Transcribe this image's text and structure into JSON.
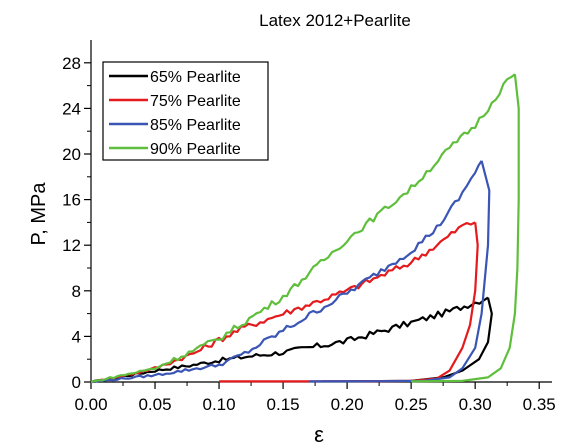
{
  "chart_data": {
    "type": "line",
    "title": "Latex 2012+Pearlite",
    "xlabel": "ε",
    "ylabel": "P, MPa",
    "xlim": [
      0.0,
      0.36
    ],
    "ylim": [
      0,
      30
    ],
    "xticks": [
      "0.00",
      "0.05",
      "0.10",
      "0.15",
      "0.20",
      "0.25",
      "0.30",
      "0.35"
    ],
    "yticks": [
      "0",
      "4",
      "8",
      "12",
      "16",
      "20",
      "24",
      "28"
    ],
    "grid": false,
    "legend_position": "top-left",
    "series": [
      {
        "name": "65% Pearlite",
        "color": "#000000",
        "loading": [
          [
            0.0,
            0
          ],
          [
            0.02,
            0.4
          ],
          [
            0.05,
            1.0
          ],
          [
            0.08,
            1.5
          ],
          [
            0.1,
            1.9
          ],
          [
            0.12,
            2.2
          ],
          [
            0.15,
            2.6
          ],
          [
            0.2,
            3.6
          ],
          [
            0.25,
            5.2
          ],
          [
            0.28,
            6.2
          ],
          [
            0.3,
            7.0
          ],
          [
            0.31,
            7.4
          ]
        ],
        "unloading": [
          [
            0.31,
            7.4
          ],
          [
            0.313,
            6.0
          ],
          [
            0.31,
            3.5
          ],
          [
            0.303,
            2.0
          ],
          [
            0.29,
            1.0
          ],
          [
            0.275,
            0.4
          ],
          [
            0.25,
            0.1
          ],
          [
            0.2,
            0.05
          ],
          [
            0.18,
            0.05
          ]
        ]
      },
      {
        "name": "75% Pearlite",
        "color": "#e41a1c",
        "loading": [
          [
            0.0,
            0
          ],
          [
            0.02,
            0.4
          ],
          [
            0.05,
            1.2
          ],
          [
            0.08,
            2.5
          ],
          [
            0.1,
            3.7
          ],
          [
            0.12,
            4.8
          ],
          [
            0.15,
            6.0
          ],
          [
            0.2,
            8.0
          ],
          [
            0.25,
            10.5
          ],
          [
            0.27,
            12.0
          ],
          [
            0.29,
            13.7
          ],
          [
            0.3,
            14.0
          ]
        ],
        "unloading": [
          [
            0.3,
            14.0
          ],
          [
            0.302,
            12.0
          ],
          [
            0.3,
            8.0
          ],
          [
            0.296,
            5.0
          ],
          [
            0.29,
            3.0
          ],
          [
            0.28,
            1.0
          ],
          [
            0.27,
            0.3
          ],
          [
            0.25,
            0.1
          ],
          [
            0.2,
            0.05
          ],
          [
            0.1,
            0.05
          ]
        ]
      },
      {
        "name": "85% Pearlite",
        "color": "#3a55b4",
        "loading": [
          [
            0.0,
            0
          ],
          [
            0.05,
            0.6
          ],
          [
            0.1,
            1.5
          ],
          [
            0.12,
            2.5
          ],
          [
            0.15,
            4.5
          ],
          [
            0.2,
            7.8
          ],
          [
            0.25,
            11.5
          ],
          [
            0.27,
            13.5
          ],
          [
            0.29,
            16.5
          ],
          [
            0.3,
            18.5
          ],
          [
            0.305,
            19.4
          ]
        ],
        "unloading": [
          [
            0.305,
            19.4
          ],
          [
            0.311,
            16.8
          ],
          [
            0.31,
            12.0
          ],
          [
            0.305,
            6.0
          ],
          [
            0.3,
            3.0
          ],
          [
            0.29,
            1.2
          ],
          [
            0.28,
            0.4
          ],
          [
            0.26,
            0.1
          ],
          [
            0.2,
            0.05
          ],
          [
            0.17,
            0.05
          ]
        ]
      },
      {
        "name": "90% Pearlite",
        "color": "#5fbf3c",
        "loading": [
          [
            0.0,
            0
          ],
          [
            0.05,
            1.2
          ],
          [
            0.1,
            3.8
          ],
          [
            0.15,
            7.5
          ],
          [
            0.2,
            12.5
          ],
          [
            0.25,
            17.0
          ],
          [
            0.28,
            20.5
          ],
          [
            0.3,
            22.5
          ],
          [
            0.31,
            24.0
          ],
          [
            0.325,
            26.5
          ],
          [
            0.331,
            27.0
          ]
        ],
        "unloading": [
          [
            0.331,
            27.0
          ],
          [
            0.334,
            24.0
          ],
          [
            0.334,
            16.0
          ],
          [
            0.333,
            10.0
          ],
          [
            0.331,
            6.0
          ],
          [
            0.327,
            3.0
          ],
          [
            0.32,
            1.2
          ],
          [
            0.31,
            0.4
          ],
          [
            0.29,
            0.1
          ],
          [
            0.25,
            0.05
          ]
        ]
      }
    ]
  }
}
